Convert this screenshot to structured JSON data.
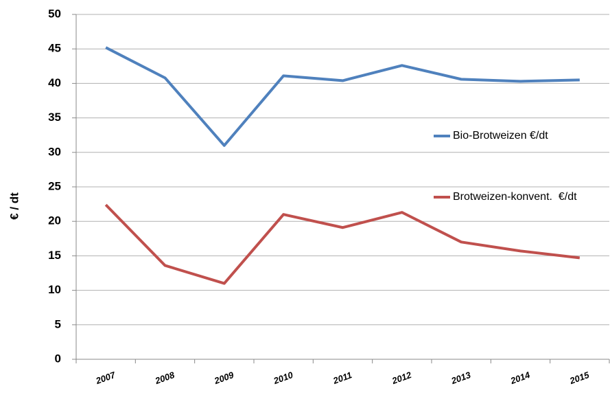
{
  "chart_data": {
    "type": "line",
    "y_label": "€ / dt",
    "categories": [
      "2007",
      "2008",
      "2009",
      "2010",
      "2011",
      "2012",
      "2013",
      "2014",
      "2015"
    ],
    "series": [
      {
        "name": "Bio-Brotweizen €/dt",
        "color": "#4f81bd",
        "values": [
          45.2,
          40.8,
          31.0,
          41.1,
          40.4,
          42.6,
          40.6,
          40.3,
          40.5
        ]
      },
      {
        "name": "Brotweizen-konvent.  €/dt",
        "color": "#c0504d",
        "values": [
          22.4,
          13.6,
          11.0,
          21.0,
          19.1,
          21.3,
          17.0,
          15.7,
          14.7
        ]
      }
    ],
    "ylim": [
      0,
      50
    ],
    "yticks": [
      0,
      5,
      10,
      15,
      20,
      25,
      30,
      35,
      40,
      45,
      50
    ],
    "grid": true,
    "legend": "right"
  }
}
